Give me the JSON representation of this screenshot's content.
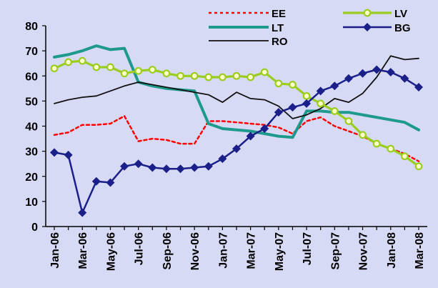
{
  "chart_data": {
    "type": "line",
    "x": [
      "Jan-06",
      "Feb-06",
      "Mar-06",
      "Apr-06",
      "May-06",
      "Jun-06",
      "Jul-06",
      "Aug-06",
      "Sep-06",
      "Oct-06",
      "Nov-06",
      "Dec-06",
      "Jan-07",
      "Feb-07",
      "Mar-07",
      "Apr-07",
      "May-07",
      "Jun-07",
      "Jul-07",
      "Aug-07",
      "Sep-07",
      "Oct-07",
      "Nov-07",
      "Dec-07",
      "Jan-08",
      "Feb-08",
      "Mar-08"
    ],
    "x_tick_labels": [
      "Jan-06",
      "Mar-06",
      "May-06",
      "Jul-06",
      "Sep-06",
      "Nov-06",
      "Jan-07",
      "Mar-07",
      "May-07",
      "Jul-07",
      "Sep-07",
      "Nov-07",
      "Jan-08",
      "Mar-08"
    ],
    "ylim": [
      0,
      80
    ],
    "y_ticks": [
      0,
      10,
      20,
      30,
      40,
      50,
      60,
      70,
      80
    ],
    "grid": false,
    "legend_position": "top",
    "series": [
      {
        "name": "EE",
        "color": "#ff0000",
        "style": "dotted",
        "marker": "none",
        "values": [
          36.5,
          37.5,
          40.5,
          40.5,
          41,
          44,
          34,
          35,
          34.5,
          33,
          33,
          42,
          42,
          41.5,
          41,
          40.5,
          39.5,
          37,
          42,
          43.5,
          40,
          38,
          36,
          33,
          31,
          29,
          26
        ]
      },
      {
        "name": "LT",
        "color": "#1e9a8c",
        "style": "solid",
        "marker": "none",
        "values": [
          67.5,
          68.5,
          70,
          72,
          70.5,
          71,
          57.5,
          56,
          55,
          54.5,
          54,
          41,
          39,
          38.5,
          38,
          37,
          36,
          35.5,
          46,
          46,
          45.5,
          45.5,
          44.5,
          43.5,
          42.5,
          41.5,
          38.5
        ]
      },
      {
        "name": "RO",
        "color": "#111111",
        "style": "solid",
        "marker": "none",
        "values": [
          49,
          50.5,
          51.5,
          52,
          54,
          56,
          57.5,
          56.5,
          55.5,
          54.5,
          53.5,
          52.5,
          49.5,
          53.5,
          51,
          50.5,
          48,
          43,
          44.5,
          47,
          51,
          49.5,
          53,
          59.5,
          68,
          66.5,
          67
        ]
      },
      {
        "name": "LV",
        "color": "#9acd1e",
        "style": "solid",
        "marker": "circle-open",
        "values": [
          63,
          65.5,
          66,
          63.5,
          63.5,
          61,
          62,
          62.5,
          61,
          60,
          60,
          59.5,
          59.5,
          60,
          59.5,
          61.5,
          57,
          56.5,
          52,
          49,
          46,
          42,
          36.5,
          33,
          31,
          28,
          24
        ]
      },
      {
        "name": "BG",
        "color": "#1a1f8a",
        "style": "solid",
        "marker": "diamond",
        "values": [
          29.5,
          28.5,
          5.5,
          18,
          17.5,
          24,
          25,
          23.5,
          23,
          23,
          23.5,
          24,
          27,
          31,
          36,
          39,
          45.5,
          47.5,
          49,
          54,
          56,
          59,
          61,
          62.5,
          61.5,
          59,
          55.5
        ]
      }
    ]
  }
}
